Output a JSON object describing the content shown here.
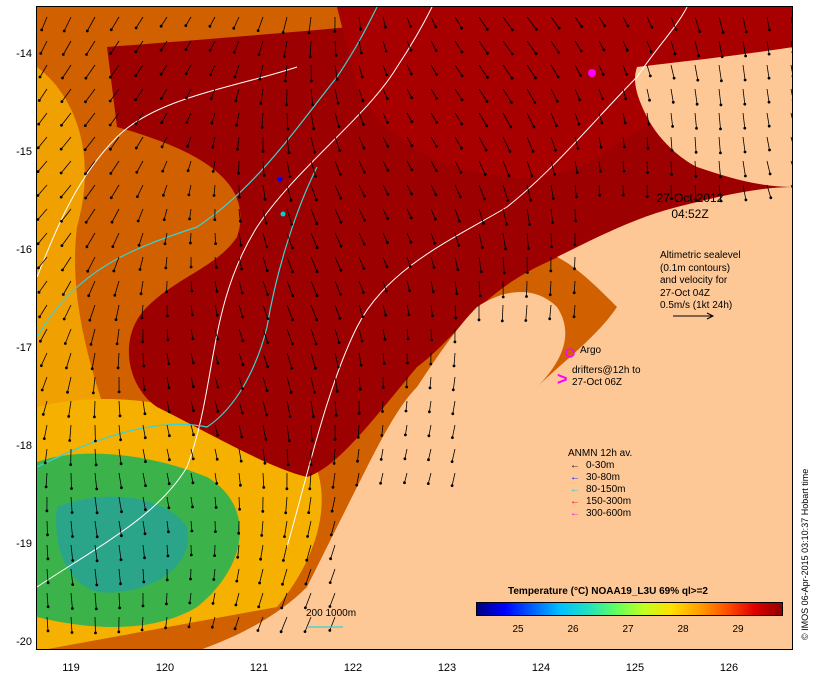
{
  "map": {
    "y_ticks": [
      "-14",
      "-15",
      "-16",
      "-17",
      "-18",
      "-19",
      "-20"
    ],
    "x_ticks": [
      "119",
      "120",
      "121",
      "122",
      "123",
      "124",
      "125",
      "126"
    ],
    "timestamp_line1": "27-Oct-2012",
    "timestamp_line2": "04:52Z",
    "altimetry_note": "Altimetric sealevel\n(0.1m contours)\nand velocity for\n27-Oct 04Z\n0.5m/s (1kt 24h)",
    "argo_label": "Argo",
    "drifter_label": "drifters@12h to\n27-Oct 06Z",
    "scalebar_label": "200  1000m",
    "colors": {
      "land": "#fdc796",
      "warm": "#9c0000",
      "mid": "#d06000",
      "cool": "#f5b000",
      "green": "#3cb34a",
      "contour_white": "#ffffff",
      "contour_cyan": "#40d0d0",
      "argo": "#ff00ff"
    }
  },
  "legend": {
    "title": "ANMN 12h av.",
    "items": [
      {
        "label": "0-30m",
        "color": "#000000"
      },
      {
        "label": "30-80m",
        "color": "#0000ff"
      },
      {
        "label": "80-150m",
        "color": "#00d0d0"
      },
      {
        "label": "150-300m",
        "color": "#ff0000"
      },
      {
        "label": "300-600m",
        "color": "#ff00ff"
      }
    ]
  },
  "colorbar": {
    "title": "Temperature (°C) NOAA19_L3U 69% ql>=2",
    "ticks": [
      "25",
      "26",
      "27",
      "28",
      "29"
    ]
  },
  "credit": "© IMOS 06-Apr-2015 03:10:37 Hobart time"
}
